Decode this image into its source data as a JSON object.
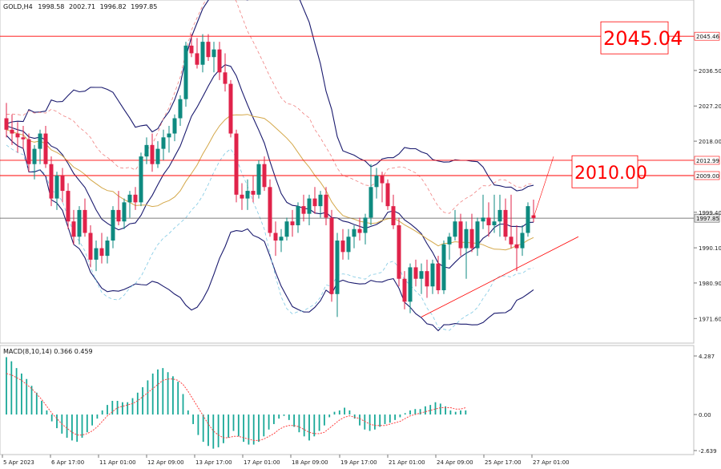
{
  "chart_data": {
    "type": "candlestick",
    "symbol_header": "GOLD,H4",
    "ohlc_header": {
      "open": "1998.58",
      "high": "2002.71",
      "low": "1996.82",
      "close": "1997.85"
    },
    "price_axis": {
      "ticks": [
        "2036.50",
        "2027.20",
        "2018.00",
        "1999.40",
        "1990.10",
        "1980.90",
        "1971.60"
      ],
      "ylim": [
        1966.0,
        2052.0
      ]
    },
    "time_axis": {
      "labels": [
        "5 Apr 2023",
        "6 Apr 17:00",
        "11 Apr 01:00",
        "12 Apr 09:00",
        "13 Apr 17:00",
        "17 Apr 01:00",
        "18 Apr 09:00",
        "19 Apr 17:00",
        "21 Apr 01:00",
        "24 Apr 09:00",
        "25 Apr 17:00",
        "27 Apr 01:00"
      ]
    },
    "horizontal_levels": [
      {
        "label": "2045.46",
        "value": 2045.46,
        "color": "#ff0000"
      },
      {
        "label": "2012.99",
        "value": 2012.99,
        "color": "#ff0000"
      },
      {
        "label": "2009.00",
        "value": 2009.0,
        "color": "#ff0000"
      },
      {
        "label": "1997.85",
        "value": 1997.85,
        "color": "#555555"
      }
    ],
    "annotations": [
      {
        "text": "2045.04",
        "value": 2045.04
      },
      {
        "text": "2010.00",
        "value": 2010.0
      }
    ],
    "candles": [
      [
        2024.0,
        2028.0,
        2019.0,
        2021.0
      ],
      [
        2021.0,
        2025.0,
        2017.0,
        2020.0
      ],
      [
        2020.0,
        2023.0,
        2015.0,
        2019.0
      ],
      [
        2019.0,
        2022.0,
        2016.0,
        2018.5
      ],
      [
        2018.5,
        2020.0,
        2010.0,
        2012.0
      ],
      [
        2012.0,
        2017.0,
        2008.0,
        2016.0
      ],
      [
        2016.0,
        2021.0,
        2012.0,
        2020.0
      ],
      [
        2020.0,
        2022.0,
        2011.0,
        2012.0
      ],
      [
        2012.0,
        2014.0,
        2001.0,
        2003.0
      ],
      [
        2003.0,
        2010.0,
        2000.0,
        2009.0
      ],
      [
        2009.0,
        2011.0,
        2002.0,
        2005.0
      ],
      [
        2005.0,
        2007.0,
        1995.0,
        1997.0
      ],
      [
        1997.0,
        2000.0,
        1991.0,
        1993.0
      ],
      [
        1993.0,
        2001.0,
        1991.0,
        2000.0
      ],
      [
        2000.0,
        2003.0,
        1993.0,
        1994.0
      ],
      [
        1994.0,
        1996.0,
        1985.0,
        1987.0
      ],
      [
        1987.0,
        1992.0,
        1984.0,
        1990.0
      ],
      [
        1990.0,
        1994.0,
        1986.0,
        1988.0
      ],
      [
        1988.0,
        1993.0,
        1986.0,
        1992.0
      ],
      [
        1992.0,
        2001.0,
        1990.0,
        2000.0
      ],
      [
        2000.0,
        2005.0,
        1996.0,
        1997.0
      ],
      [
        1997.0,
        2003.0,
        1995.0,
        2002.0
      ],
      [
        2002.0,
        2005.0,
        1998.0,
        2004.0
      ],
      [
        2004.0,
        2006.0,
        2000.0,
        2002.0
      ],
      [
        2002.0,
        2015.0,
        2001.0,
        2014.0
      ],
      [
        2014.0,
        2019.0,
        2012.0,
        2017.0
      ],
      [
        2017.0,
        2020.0,
        2010.0,
        2012.0
      ],
      [
        2012.0,
        2018.0,
        2011.0,
        2016.0
      ],
      [
        2016.0,
        2021.0,
        2013.0,
        2019.0
      ],
      [
        2019.0,
        2022.0,
        2015.0,
        2020.0
      ],
      [
        2020.0,
        2025.0,
        2018.0,
        2024.0
      ],
      [
        2024.0,
        2030.0,
        2022.0,
        2029.0
      ],
      [
        2029.0,
        2044.0,
        2027.0,
        2043.0
      ],
      [
        2043.0,
        2046.0,
        2040.0,
        2041.0
      ],
      [
        2041.0,
        2045.0,
        2037.0,
        2038.0
      ],
      [
        2038.0,
        2046.0,
        2036.0,
        2044.0
      ],
      [
        2044.0,
        2046.0,
        2039.0,
        2040.0
      ],
      [
        2040.0,
        2044.0,
        2036.0,
        2042.0
      ],
      [
        2042.0,
        2044.0,
        2034.0,
        2036.0
      ],
      [
        2036.0,
        2041.0,
        2031.0,
        2033.0
      ],
      [
        2033.0,
        2034.0,
        2019.0,
        2020.0
      ],
      [
        2020.0,
        2021.0,
        2002.0,
        2004.0
      ],
      [
        2004.0,
        2007.0,
        2000.0,
        2003.0
      ],
      [
        2003.0,
        2008.0,
        2000.0,
        2005.0
      ],
      [
        2005.0,
        2009.0,
        2002.0,
        2004.0
      ],
      [
        2004.0,
        2013.0,
        2003.0,
        2012.0
      ],
      [
        2012.0,
        2014.0,
        2005.0,
        2006.0
      ],
      [
        2006.0,
        2008.0,
        1993.0,
        1994.0
      ],
      [
        1994.0,
        1997.0,
        1988.0,
        1992.0
      ],
      [
        1992.0,
        1995.0,
        1989.0,
        1993.0
      ],
      [
        1993.0,
        1998.0,
        1992.0,
        1997.0
      ],
      [
        1997.0,
        2000.0,
        1993.0,
        1996.0
      ],
      [
        1996.0,
        2002.0,
        1994.0,
        2001.0
      ],
      [
        2001.0,
        2004.0,
        1997.0,
        1999.0
      ],
      [
        1999.0,
        2004.0,
        1996.0,
        2003.0
      ],
      [
        2003.0,
        2006.0,
        1999.0,
        2001.0
      ],
      [
        2001.0,
        2005.0,
        1998.0,
        2004.0
      ],
      [
        2004.0,
        2006.0,
        1996.0,
        1998.0
      ],
      [
        1998.0,
        2000.0,
        1976.0,
        1978.0
      ],
      [
        1978.0,
        1994.0,
        1972.0,
        1992.0
      ],
      [
        1992.0,
        1995.0,
        1987.0,
        1989.0
      ],
      [
        1989.0,
        1995.0,
        1987.0,
        1993.0
      ],
      [
        1993.0,
        1996.0,
        1990.0,
        1995.0
      ],
      [
        1995.0,
        1998.0,
        1992.0,
        1994.0
      ],
      [
        1994.0,
        1999.0,
        1991.0,
        1998.0
      ],
      [
        1998.0,
        2012.0,
        1996.0,
        2006.0
      ],
      [
        2006.0,
        2011.0,
        2003.0,
        2009.0
      ],
      [
        2009.0,
        2010.0,
        2002.0,
        2007.0
      ],
      [
        2007.0,
        2008.0,
        2000.0,
        2001.0
      ],
      [
        2001.0,
        2004.0,
        1995.0,
        1996.0
      ],
      [
        1996.0,
        1998.0,
        1980.0,
        1982.0
      ],
      [
        1982.0,
        1984.0,
        1974.0,
        1976.0
      ],
      [
        1976.0,
        1986.0,
        1973.0,
        1985.0
      ],
      [
        1985.0,
        1987.0,
        1980.0,
        1982.0
      ],
      [
        1982.0,
        1986.0,
        1978.0,
        1984.0
      ],
      [
        1984.0,
        1987.0,
        1977.0,
        1980.0
      ],
      [
        1980.0,
        1987.0,
        1978.0,
        1986.0
      ],
      [
        1986.0,
        1988.0,
        1978.0,
        1979.0
      ],
      [
        1979.0,
        1992.0,
        1978.0,
        1991.0
      ],
      [
        1991.0,
        1994.0,
        1987.0,
        1993.0
      ],
      [
        1993.0,
        2000.0,
        1992.0,
        1997.0
      ],
      [
        1997.0,
        1999.0,
        1988.0,
        1990.0
      ],
      [
        1990.0,
        1997.0,
        1982.0,
        1995.0
      ],
      [
        1995.0,
        1999.0,
        1989.0,
        1990.0
      ],
      [
        1990.0,
        1998.0,
        1988.0,
        1997.0
      ],
      [
        1997.0,
        2004.0,
        1995.0,
        1998.0
      ],
      [
        1998.0,
        2002.0,
        1993.0,
        1996.0
      ],
      [
        1996.0,
        2004.0,
        1994.0,
        1997.0
      ],
      [
        1997.0,
        2004.0,
        1993.0,
        2000.0
      ],
      [
        2000.0,
        2003.0,
        1992.0,
        1993.0
      ],
      [
        1993.0,
        2004.0,
        1990.0,
        1991.0
      ],
      [
        1991.0,
        1996.0,
        1984.0,
        1990.0
      ],
      [
        1990.0,
        1996.0,
        1988.0,
        1994.0
      ],
      [
        1994.0,
        2002.0,
        1993.0,
        2001.0
      ],
      [
        1998.6,
        2002.7,
        1996.8,
        1997.9
      ]
    ],
    "macd": {
      "title": "MACD(8,10,14) 0.366 0.459",
      "ticks": [
        "4.287",
        "0.00",
        "-2.639"
      ],
      "ylim": [
        -2.639,
        4.287
      ],
      "histogram": [
        4.2,
        3.9,
        3.4,
        3.0,
        2.6,
        2.1,
        1.6,
        1.0,
        0.3,
        -0.5,
        -1.0,
        -1.4,
        -1.7,
        -1.9,
        -2.0,
        -1.7,
        -1.3,
        -0.8,
        -0.3,
        0.3,
        0.7,
        1.0,
        1.0,
        0.9,
        0.9,
        1.2,
        1.6,
        2.0,
        2.5,
        3.0,
        3.3,
        3.4,
        3.1,
        2.8,
        2.4,
        1.5,
        0.3,
        -0.7,
        -1.5,
        -2.0,
        -2.3,
        -2.5,
        -2.4,
        -2.1,
        -1.7,
        -1.2,
        -1.6,
        -2.0,
        -2.2,
        -2.2,
        -2.0,
        -1.6,
        -1.1,
        -0.7,
        -0.3,
        -0.1,
        -0.4,
        -0.9,
        -1.3,
        -1.6,
        -1.9,
        -1.6,
        -1.2,
        -0.8,
        -0.2,
        0.2,
        0.3,
        0.5,
        0.3,
        -0.3,
        -0.8,
        -1.1,
        -1.2,
        -1.1,
        -0.9,
        -0.7,
        -0.6,
        -0.4,
        -0.2,
        0.1,
        0.3,
        0.4,
        0.4,
        0.6,
        0.7,
        0.9,
        0.8,
        0.6,
        0.3,
        0.2,
        0.3,
        0.3
      ],
      "signal": [
        3.0,
        2.9,
        2.7,
        2.5,
        2.2,
        1.9,
        1.5,
        1.1,
        0.6,
        0.1,
        -0.3,
        -0.7,
        -1.0,
        -1.3,
        -1.5,
        -1.5,
        -1.4,
        -1.2,
        -0.9,
        -0.5,
        -0.1,
        0.2,
        0.5,
        0.6,
        0.7,
        0.8,
        1.0,
        1.3,
        1.6,
        1.9,
        2.2,
        2.5,
        2.6,
        2.6,
        2.5,
        2.2,
        1.7,
        1.1,
        0.5,
        -0.1,
        -0.7,
        -1.2,
        -1.5,
        -1.7,
        -1.7,
        -1.6,
        -1.6,
        -1.7,
        -1.8,
        -1.9,
        -1.9,
        -1.8,
        -1.6,
        -1.4,
        -1.1,
        -0.9,
        -0.8,
        -0.8,
        -0.9,
        -1.1,
        -1.3,
        -1.4,
        -1.4,
        -1.3,
        -1.0,
        -0.7,
        -0.4,
        -0.2,
        -0.1,
        -0.2,
        -0.3,
        -0.5,
        -0.7,
        -0.8,
        -0.8,
        -0.8,
        -0.7,
        -0.6,
        -0.5,
        -0.3,
        -0.1,
        0.0,
        0.1,
        0.2,
        0.3,
        0.4,
        0.5,
        0.5,
        0.5,
        0.4,
        0.4,
        0.5
      ]
    },
    "colors": {
      "bull": "#0e8a80",
      "bear": "#e0234a",
      "bands": "#1a1a6e",
      "ma": "#d4a84a",
      "envelope_upper": "#f08080",
      "envelope_lower": "#7ec8e3",
      "macd_hist": "#18a898",
      "macd_signal": "#ff4040",
      "level": "#ff0000",
      "grid": "#b0b0b0"
    }
  }
}
